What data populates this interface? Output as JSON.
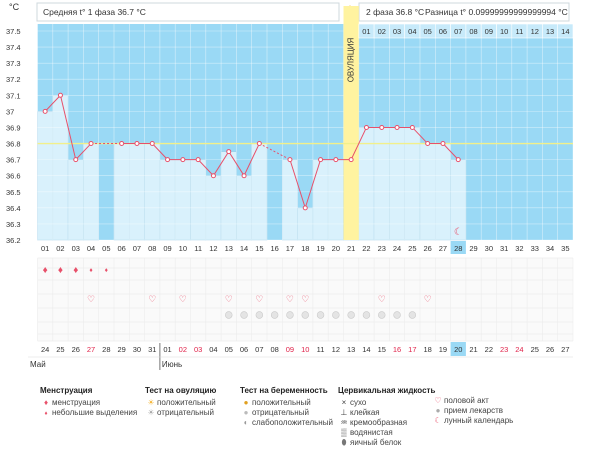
{
  "header": {
    "unit": "°C",
    "phase1": "Средняя t° 1 фаза 36.7 °C",
    "phase2": "2 фаза 36.8 °C",
    "diff": "Разница t° 0.09999999999999994 °C"
  },
  "chart_data": {
    "type": "bar",
    "ylim": [
      36.2,
      37.5
    ],
    "yticks": [
      "37.5",
      "37.4",
      "37.3",
      "37.2",
      "37.1",
      "37",
      "36.9",
      "36.8",
      "36.7",
      "36.6",
      "36.5",
      "36.4",
      "36.3",
      "36.2"
    ],
    "ovulation_label": "ОВУЛЯЦИЯ",
    "ovulation_day": 21,
    "coverline": 36.8,
    "phase2_days": [
      "01",
      "02",
      "03",
      "04",
      "05",
      "06",
      "07",
      "08",
      "09",
      "10",
      "11",
      "12",
      "13",
      "14"
    ],
    "cycle_days": [
      "01",
      "02",
      "03",
      "04",
      "05",
      "06",
      "07",
      "08",
      "09",
      "10",
      "11",
      "12",
      "13",
      "14",
      "15",
      "16",
      "17",
      "18",
      "19",
      "20",
      "21",
      "22",
      "23",
      "24",
      "25",
      "26",
      "27",
      "28",
      "29",
      "30",
      "31",
      "32",
      "33",
      "34",
      "35"
    ],
    "temperatures": [
      37.0,
      37.1,
      36.7,
      36.8,
      null,
      36.8,
      36.8,
      36.8,
      36.7,
      36.7,
      36.7,
      36.6,
      36.75,
      36.6,
      36.8,
      null,
      36.7,
      36.4,
      36.7,
      36.7,
      36.7,
      36.9,
      36.9,
      36.9,
      36.9,
      36.8,
      36.8,
      36.7,
      null,
      null,
      null,
      null,
      null,
      null,
      null
    ],
    "today_index": 27,
    "dates": [
      "24",
      "25",
      "26",
      "27",
      "28",
      "29",
      "30",
      "31",
      "01",
      "02",
      "03",
      "04",
      "05",
      "06",
      "07",
      "08",
      "09",
      "10",
      "11",
      "12",
      "13",
      "14",
      "15",
      "16",
      "17",
      "18",
      "19",
      "20",
      "21",
      "22",
      "23",
      "24",
      "25",
      "26",
      "27"
    ],
    "weekend_idx": [
      3,
      9,
      10,
      16,
      17,
      23,
      24,
      30,
      31
    ],
    "months": [
      {
        "label": "Май",
        "index": 0
      },
      {
        "label": "Июнь",
        "index": 8
      }
    ],
    "menstruation": [
      1,
      1,
      1,
      0,
      0,
      0,
      0,
      0,
      0,
      0,
      0,
      0,
      0,
      0,
      0,
      0,
      0,
      0,
      0,
      0,
      0,
      0,
      0,
      0,
      0,
      0,
      0,
      0,
      0,
      0,
      0,
      0,
      0,
      0,
      0
    ],
    "spotting": [
      0,
      0,
      0,
      1,
      1,
      0,
      0,
      0,
      0,
      0,
      0,
      0,
      0,
      0,
      0,
      0,
      0,
      0,
      0,
      0,
      0,
      0,
      0,
      0,
      0,
      0,
      0,
      0,
      0,
      0,
      0,
      0,
      0,
      0,
      0
    ],
    "intercourse": [
      0,
      0,
      0,
      1,
      0,
      0,
      0,
      1,
      0,
      1,
      0,
      0,
      1,
      0,
      1,
      0,
      1,
      1,
      0,
      0,
      0,
      0,
      1,
      0,
      0,
      1,
      0,
      0,
      0,
      0,
      0,
      0,
      0,
      0,
      0
    ],
    "medication": [
      0,
      0,
      0,
      0,
      0,
      0,
      0,
      0,
      0,
      0,
      0,
      0,
      1,
      1,
      1,
      1,
      1,
      1,
      1,
      1,
      1,
      1,
      1,
      1,
      1,
      0,
      0,
      0,
      0,
      0,
      0,
      0,
      0,
      0,
      0
    ]
  },
  "legend": {
    "menstruation": {
      "title": "Менструация",
      "items": [
        "менструация",
        "небольшие выделения"
      ]
    },
    "ovulation_test": {
      "title": "Тест на овуляцию",
      "items": [
        "положительный",
        "отрицательный"
      ]
    },
    "pregnancy_test": {
      "title": "Тест на беременность",
      "items": [
        "положительный",
        "отрицательный",
        "слабоположительный"
      ]
    },
    "cervical": {
      "title": "Цервикальная жидкость",
      "items": [
        "сухо",
        "клейкая",
        "кремообразная",
        "водянистая",
        "яичный белок"
      ]
    },
    "extras": {
      "items": [
        "половой акт",
        "прием лекарств",
        "лунный календарь"
      ]
    }
  },
  "colors": {
    "sky": "#9ad9f5",
    "bar": "#d9f1fc",
    "bar_border": "#8cc8e4",
    "line": "#e8506a",
    "ovulation": "#fff3a0",
    "coverline": "#f2f08a",
    "weekend": "#e0234a"
  }
}
